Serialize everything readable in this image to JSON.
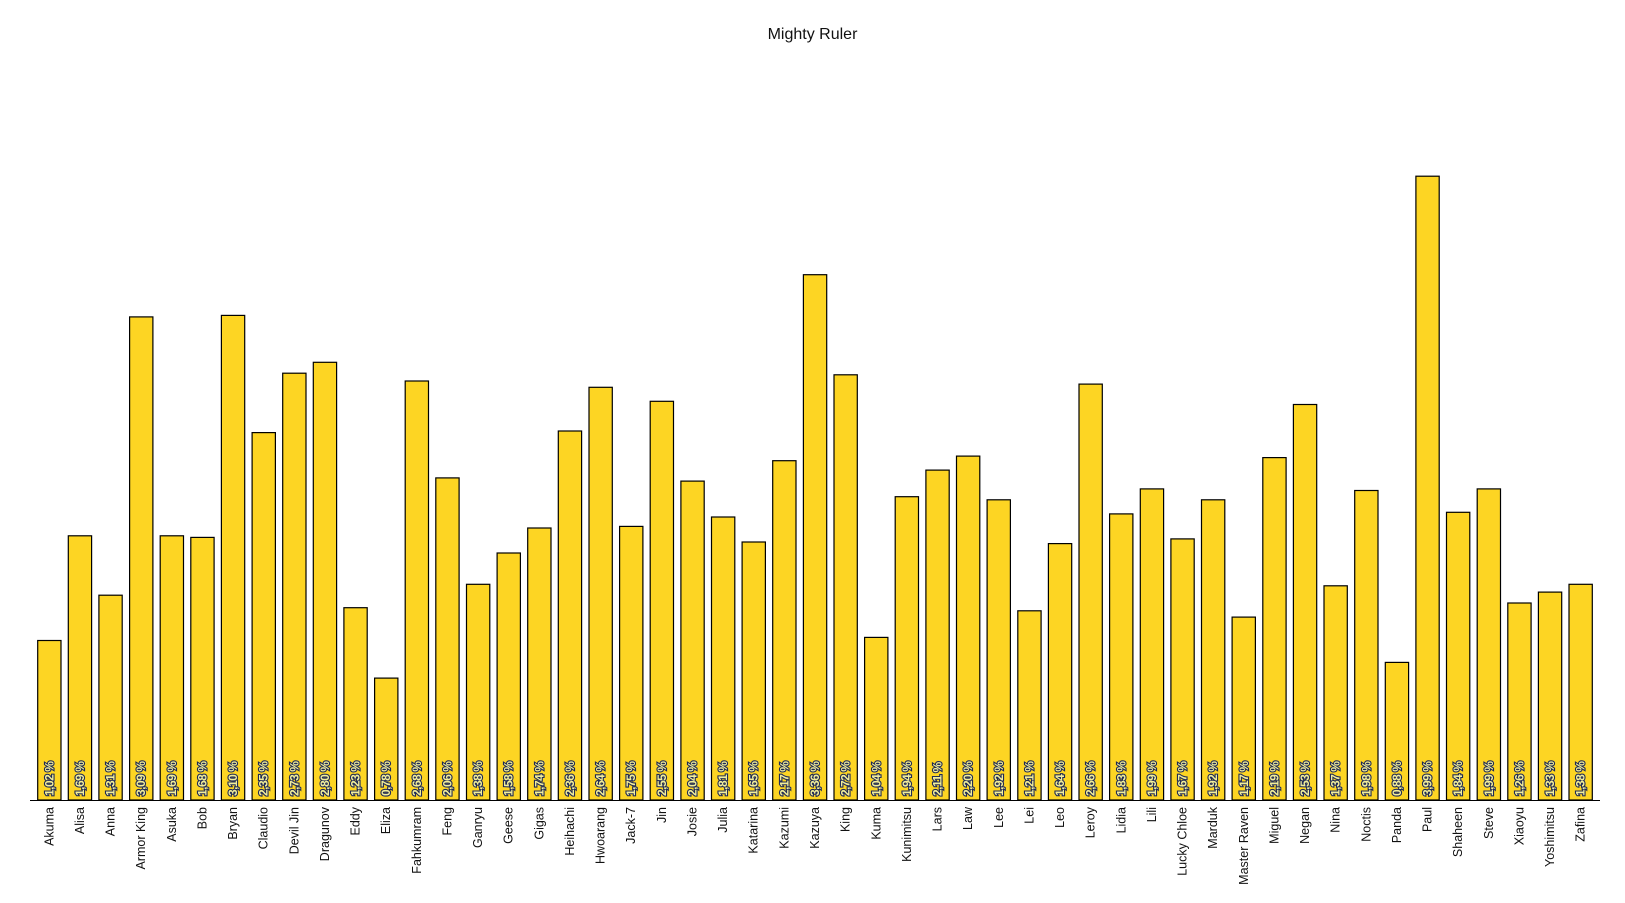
{
  "chart_data": {
    "type": "bar",
    "title": "Mighty Ruler",
    "xlabel": "",
    "ylabel": "",
    "ylim": [
      0,
      4.26
    ],
    "grid": false,
    "legend": "none",
    "bar_color": "#FDD523",
    "bar_edge_color": "#000000",
    "categories": [
      "Akuma",
      "Alisa",
      "Anna",
      "Armor King",
      "Asuka",
      "Bob",
      "Bryan",
      "Claudio",
      "Devil Jin",
      "Dragunov",
      "Eddy",
      "Eliza",
      "Fahkumram",
      "Feng",
      "Ganryu",
      "Geese",
      "Gigas",
      "Heihachi",
      "Hwoarang",
      "Jack-7",
      "Jin",
      "Josie",
      "Julia",
      "Katarina",
      "Kazumi",
      "Kazuya",
      "King",
      "Kuma",
      "Kunimitsu",
      "Lars",
      "Law",
      "Lee",
      "Lei",
      "Leo",
      "Leroy",
      "Lidia",
      "Lili",
      "Lucky Chloe",
      "Marduk",
      "Master Raven",
      "Miguel",
      "Negan",
      "Nina",
      "Noctis",
      "Panda",
      "Paul",
      "Shaheen",
      "Steve",
      "Xiaoyu",
      "Yoshimitsu",
      "Zafina"
    ],
    "values": [
      1.02,
      1.69,
      1.31,
      3.09,
      1.69,
      1.68,
      3.1,
      2.35,
      2.73,
      2.8,
      1.23,
      0.78,
      2.68,
      2.06,
      1.38,
      1.58,
      1.74,
      2.36,
      2.64,
      1.75,
      2.55,
      2.04,
      1.81,
      1.65,
      2.17,
      3.36,
      2.72,
      1.04,
      1.94,
      2.11,
      2.2,
      1.92,
      1.21,
      1.64,
      2.66,
      1.83,
      1.99,
      1.67,
      1.92,
      1.17,
      2.19,
      2.53,
      1.37,
      1.98,
      0.88,
      3.99,
      1.84,
      1.99,
      1.26,
      1.33,
      1.38
    ],
    "data_labels": [
      "1,02 %",
      "1,69 %",
      "1,31 %",
      "3,09 %",
      "1,69 %",
      "1,68 %",
      "3,10 %",
      "2,35 %",
      "2,73 %",
      "2,80 %",
      "1,23 %",
      "0,78 %",
      "2,68 %",
      "2,06 %",
      "1,38 %",
      "1,58 %",
      "1,74 %",
      "2,36 %",
      "2,64 %",
      "1,75 %",
      "2,55 %",
      "2,04 %",
      "1,81 %",
      "1,65 %",
      "2,17 %",
      "3,36 %",
      "2,72 %",
      "1,04 %",
      "1,94 %",
      "2,11 %",
      "2,20 %",
      "1,92 %",
      "1,21 %",
      "1,64 %",
      "2,66 %",
      "1,83 %",
      "1,99 %",
      "1,67 %",
      "1,92 %",
      "1,17 %",
      "2,19 %",
      "2,53 %",
      "1,37 %",
      "1,98 %",
      "0,88 %",
      "3,99 %",
      "1,84 %",
      "1,99 %",
      "1,26 %",
      "1,33 %",
      "1,38 %"
    ]
  }
}
